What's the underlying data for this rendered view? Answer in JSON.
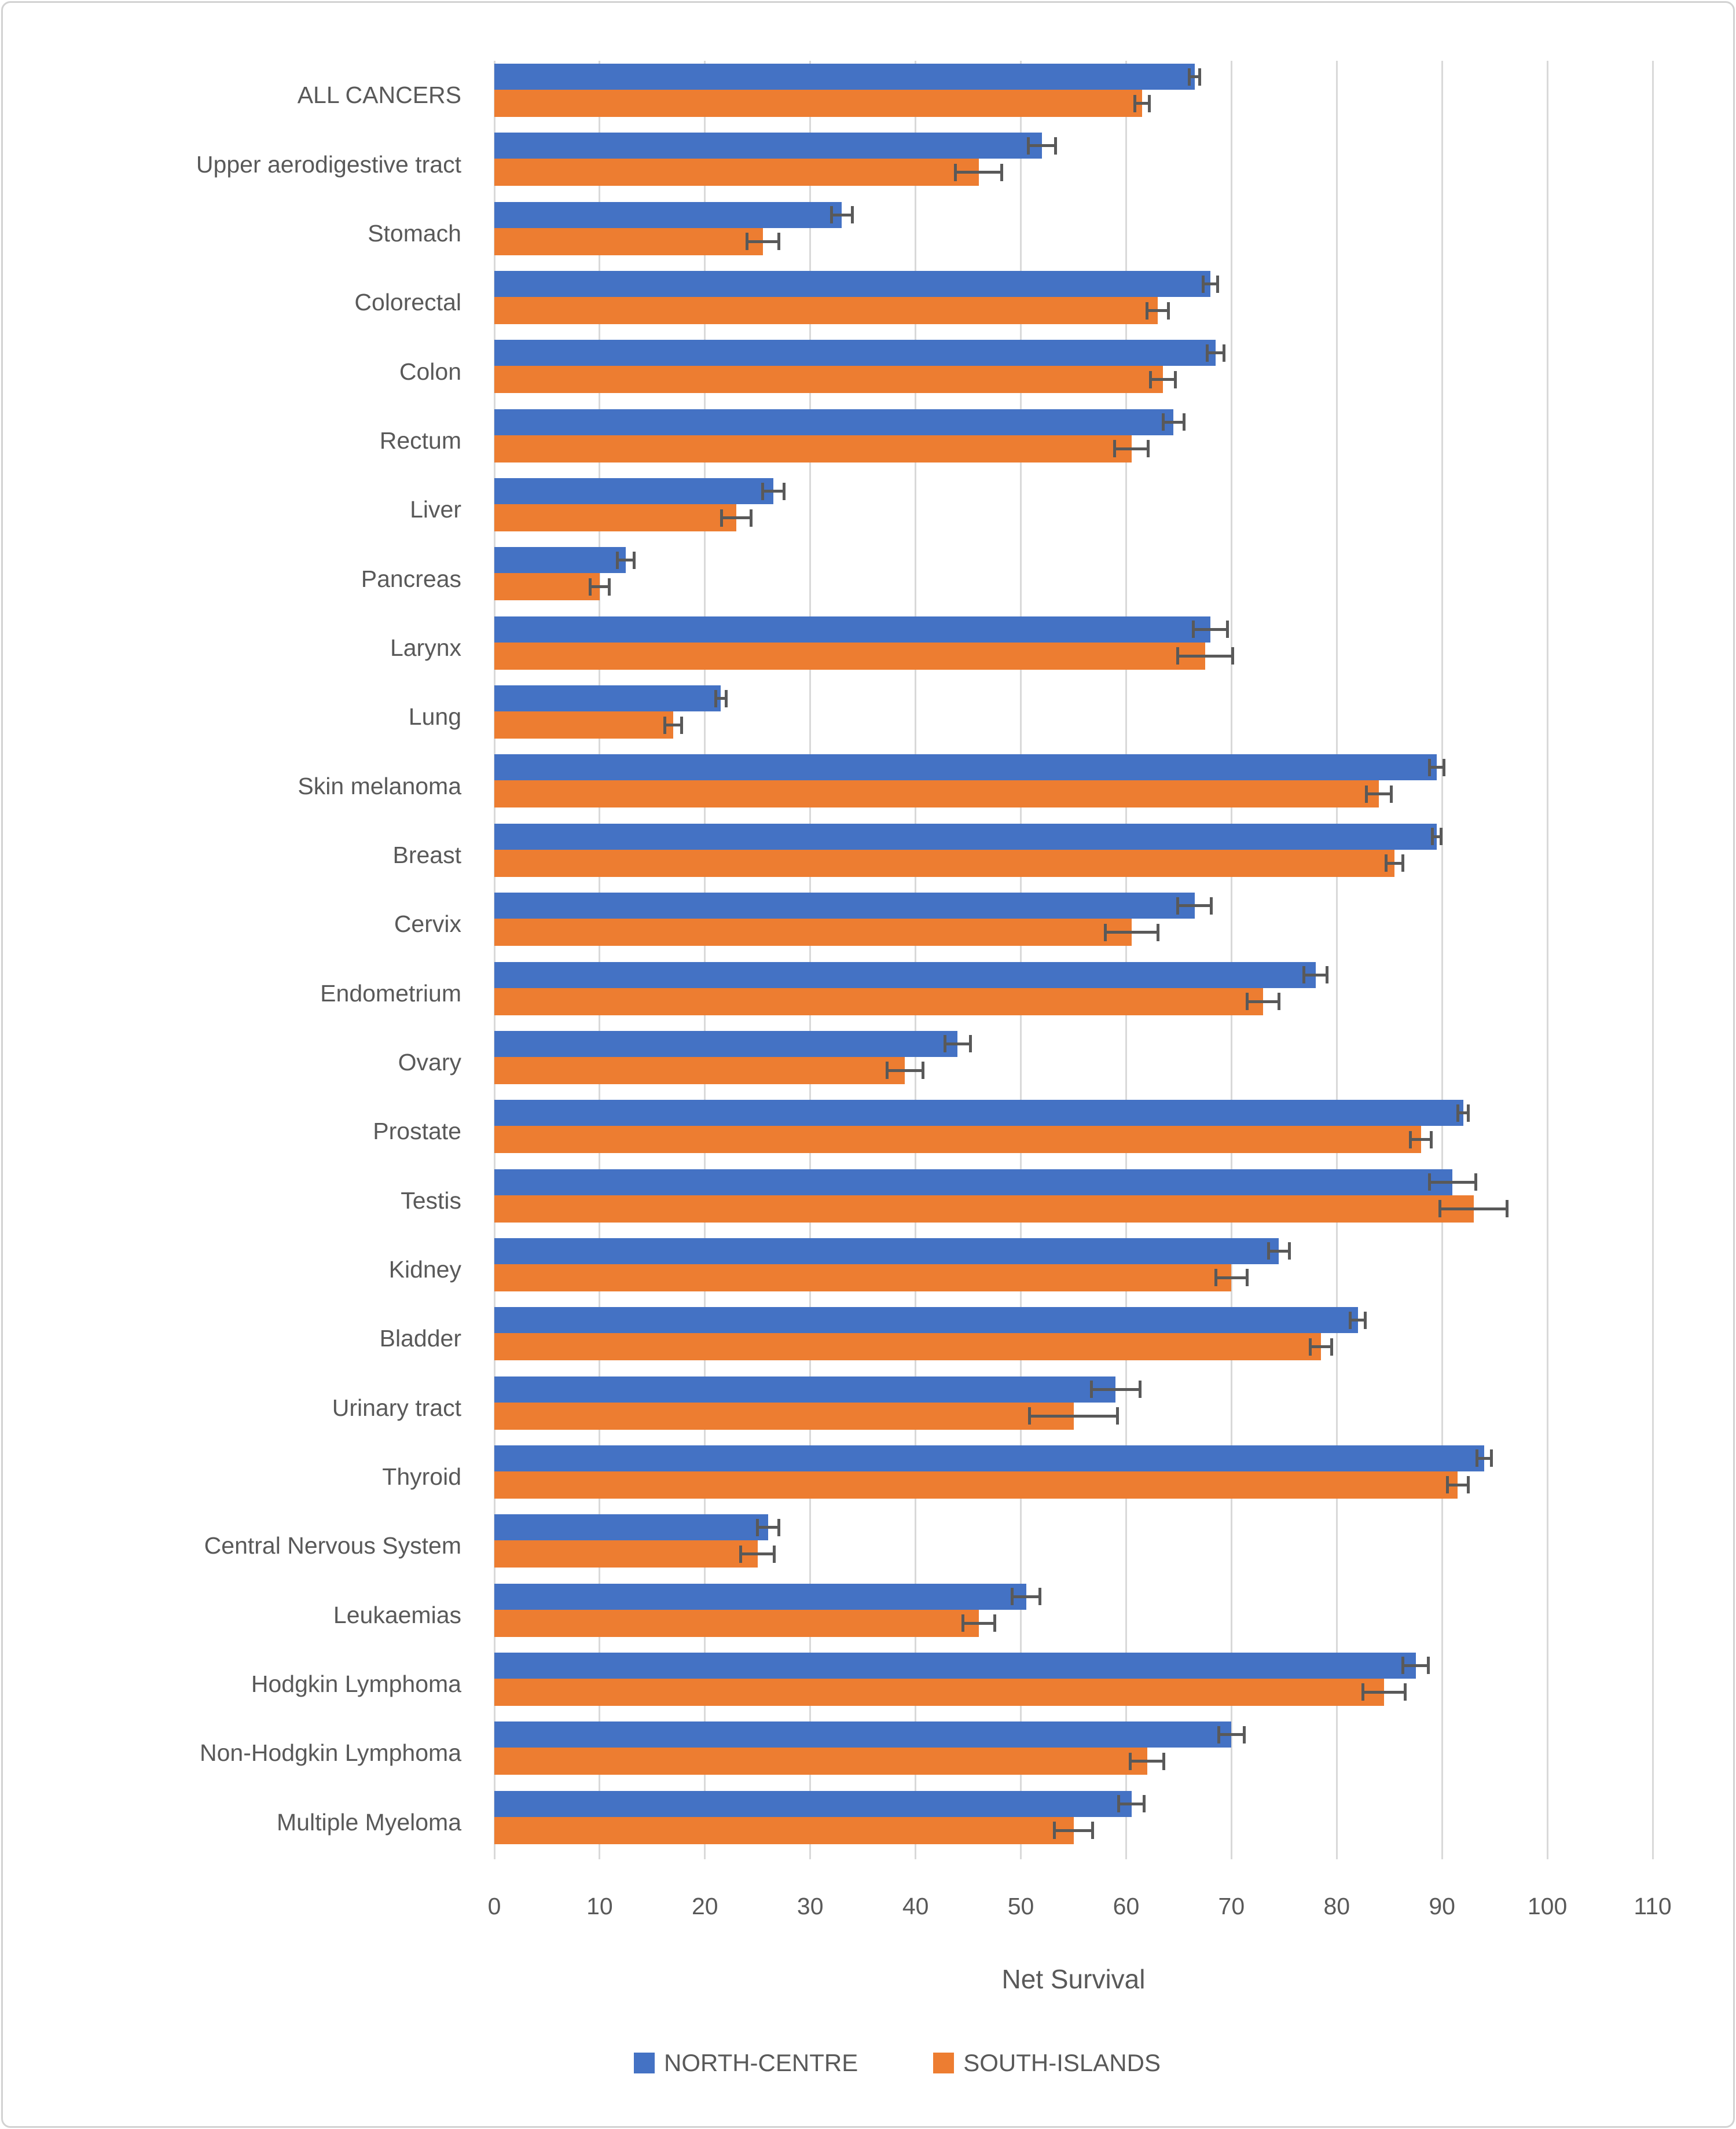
{
  "chart_data": {
    "type": "bar",
    "orientation": "horizontal",
    "xlabel": "Net Survival",
    "xlim": [
      0,
      110
    ],
    "x_ticks": [
      0,
      10,
      20,
      30,
      40,
      50,
      60,
      70,
      80,
      90,
      100,
      110
    ],
    "grid": true,
    "legend_position": "bottom",
    "text_color": "#595959",
    "gridline_color": "#D9D9D9",
    "error_bar_color": "#595959",
    "categories": [
      "ALL CANCERS",
      "Upper aerodigestive tract",
      "Stomach",
      "Colorectal",
      "Colon",
      "Rectum",
      "Liver",
      "Pancreas",
      "Larynx",
      "Lung",
      "Skin melanoma",
      "Breast",
      "Cervix",
      "Endometrium",
      "Ovary",
      "Prostate",
      "Testis",
      "Kidney",
      "Bladder",
      "Urinary tract",
      "Thyroid",
      "Central Nervous System",
      "Leukaemias",
      "Hodgkin Lymphoma",
      "Non-Hodgkin Lymphoma",
      "Multiple Myeloma"
    ],
    "series": [
      {
        "name": "NORTH-CENTRE",
        "color": "#4472C4",
        "values": [
          66.5,
          52,
          33,
          68,
          68.5,
          64.5,
          26.5,
          12.5,
          68,
          21.5,
          89.5,
          89.5,
          66.5,
          78,
          44,
          92,
          91,
          74.5,
          82,
          59,
          94,
          26,
          50.5,
          87.5,
          70,
          60.5
        ],
        "errors": [
          0.5,
          1.3,
          1.0,
          0.7,
          0.8,
          1.0,
          1.0,
          0.8,
          1.6,
          0.5,
          0.7,
          0.4,
          1.6,
          1.1,
          1.2,
          0.5,
          2.2,
          1.0,
          0.7,
          2.3,
          0.7,
          1.0,
          1.3,
          1.2,
          1.2,
          1.2
        ]
      },
      {
        "name": "SOUTH-ISLANDS",
        "color": "#ED7D31",
        "values": [
          61.5,
          46,
          25.5,
          63,
          63.5,
          60.5,
          23,
          10,
          67.5,
          17,
          84,
          85.5,
          60.5,
          73,
          39,
          88,
          93,
          70,
          78.5,
          55,
          91.5,
          25,
          46,
          84.5,
          62,
          55
        ],
        "errors": [
          0.7,
          2.2,
          1.5,
          1.0,
          1.2,
          1.6,
          1.4,
          0.9,
          2.6,
          0.8,
          1.2,
          0.8,
          2.5,
          1.5,
          1.7,
          1.0,
          3.2,
          1.5,
          1.0,
          4.2,
          1.0,
          1.6,
          1.5,
          2.0,
          1.6,
          1.8
        ]
      }
    ]
  },
  "legend": {
    "items": [
      {
        "label": "NORTH-CENTRE",
        "color": "#4472C4"
      },
      {
        "label": "SOUTH-ISLANDS",
        "color": "#ED7D31"
      }
    ]
  }
}
